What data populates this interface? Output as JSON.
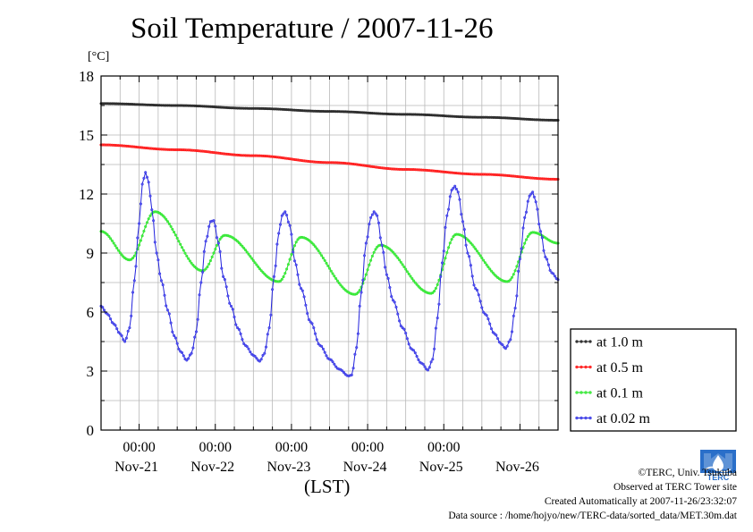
{
  "page": {
    "title": "Soil Temperature / 2007-11-26",
    "unit_label": "[°C]",
    "x_axis_label": "(LST)",
    "credits": [
      "©TERC, Univ. Tsukuba",
      "Observed at TERC Tower site",
      "Created Automatically at 2007-11-26/23:32:07",
      "Data source : /home/hojyo/new/TERC-data/sorted_data/MET.30m.dat"
    ],
    "logo": {
      "icon": "terc-logo-icon",
      "text": "TERC"
    }
  },
  "chart_data": {
    "type": "line",
    "title": "Soil Temperature / 2007-11-26",
    "ylabel": "[°C]",
    "xlabel": "(LST)",
    "x_unit": "hours since 2007-11-20 12:00 LST",
    "xlim": [
      0,
      144
    ],
    "ylim": [
      0,
      18
    ],
    "y_ticks": [
      0,
      3,
      6,
      9,
      12,
      15,
      18
    ],
    "x_tick_time_label": "00:00",
    "x_tick_hours": [
      12,
      36,
      60,
      84,
      108
    ],
    "x_date_labels": [
      "Nov-21",
      "Nov-22",
      "Nov-23",
      "Nov-24",
      "Nov-25",
      "Nov-26"
    ],
    "x_date_label_hours": [
      12,
      36,
      60,
      84,
      108,
      132
    ],
    "grid": true,
    "legend_position": "right",
    "series": [
      {
        "name": "at 1.0 m",
        "color": "#333333",
        "stroke": "#222222",
        "anchors": [
          [
            0,
            16.6
          ],
          [
            24,
            16.5
          ],
          [
            48,
            16.35
          ],
          [
            72,
            16.2
          ],
          [
            96,
            16.05
          ],
          [
            120,
            15.9
          ],
          [
            144,
            15.75
          ]
        ]
      },
      {
        "name": "at 0.5 m",
        "color": "#ff3333",
        "stroke": "#ff0000",
        "anchors": [
          [
            0,
            14.5
          ],
          [
            24,
            14.25
          ],
          [
            48,
            13.95
          ],
          [
            72,
            13.6
          ],
          [
            96,
            13.25
          ],
          [
            120,
            13.0
          ],
          [
            144,
            12.75
          ]
        ]
      },
      {
        "name": "at 0.1 m",
        "color": "#44ee44",
        "stroke": "#22dd22",
        "anchors": [
          [
            0,
            10.1
          ],
          [
            9,
            8.65
          ],
          [
            17,
            11.1
          ],
          [
            32,
            8.1
          ],
          [
            39,
            9.9
          ],
          [
            56,
            7.55
          ],
          [
            63,
            9.8
          ],
          [
            80,
            6.9
          ],
          [
            88,
            9.4
          ],
          [
            104,
            6.95
          ],
          [
            112,
            9.95
          ],
          [
            128,
            7.55
          ],
          [
            136,
            10.05
          ],
          [
            144,
            9.5
          ]
        ]
      },
      {
        "name": "at 0.02 m",
        "color": "#5555ee",
        "stroke": "#2222dd",
        "anchors": [
          [
            0,
            6.3
          ],
          [
            2,
            5.9
          ],
          [
            4,
            5.4
          ],
          [
            6,
            4.9
          ],
          [
            7.5,
            4.5
          ],
          [
            9,
            5.2
          ],
          [
            10.5,
            7.6
          ],
          [
            12,
            10.5
          ],
          [
            13,
            12.5
          ],
          [
            14,
            13.1
          ],
          [
            15,
            12.6
          ],
          [
            16,
            11.2
          ],
          [
            17.5,
            9.0
          ],
          [
            19,
            7.6
          ],
          [
            21,
            6.1
          ],
          [
            23,
            4.8
          ],
          [
            25,
            4.0
          ],
          [
            27,
            3.55
          ],
          [
            28.5,
            3.9
          ],
          [
            30,
            5.0
          ],
          [
            31.5,
            7.5
          ],
          [
            33,
            9.6
          ],
          [
            34.5,
            10.6
          ],
          [
            35.5,
            10.65
          ],
          [
            37,
            9.5
          ],
          [
            38.5,
            7.8
          ],
          [
            41,
            6.3
          ],
          [
            43,
            5.2
          ],
          [
            45.5,
            4.3
          ],
          [
            48,
            3.8
          ],
          [
            50,
            3.5
          ],
          [
            51.5,
            3.9
          ],
          [
            53,
            5.2
          ],
          [
            54.5,
            7.8
          ],
          [
            56,
            10.0
          ],
          [
            57,
            10.9
          ],
          [
            58,
            11.1
          ],
          [
            59.5,
            10.4
          ],
          [
            61,
            8.6
          ],
          [
            63,
            7.2
          ],
          [
            66,
            5.5
          ],
          [
            69,
            4.3
          ],
          [
            72,
            3.6
          ],
          [
            75,
            3.1
          ],
          [
            78,
            2.75
          ],
          [
            79,
            2.8
          ],
          [
            80.5,
            4.2
          ],
          [
            82,
            7.0
          ],
          [
            83.5,
            9.5
          ],
          [
            85,
            10.8
          ],
          [
            86,
            11.1
          ],
          [
            87,
            10.9
          ],
          [
            88.5,
            9.4
          ],
          [
            90,
            7.9
          ],
          [
            92,
            6.6
          ],
          [
            95,
            5.2
          ],
          [
            98,
            4.1
          ],
          [
            101,
            3.4
          ],
          [
            103,
            3.05
          ],
          [
            104.5,
            3.6
          ],
          [
            106,
            5.7
          ],
          [
            107.5,
            8.5
          ],
          [
            109,
            10.9
          ],
          [
            110.5,
            12.2
          ],
          [
            111.5,
            12.4
          ],
          [
            112.5,
            12.1
          ],
          [
            114,
            10.6
          ],
          [
            115.5,
            9.0
          ],
          [
            118,
            7.2
          ],
          [
            121,
            5.9
          ],
          [
            124,
            4.9
          ],
          [
            126,
            4.4
          ],
          [
            127.5,
            4.15
          ],
          [
            129,
            4.6
          ],
          [
            130.5,
            6.2
          ],
          [
            132,
            8.7
          ],
          [
            133.5,
            10.8
          ],
          [
            135,
            11.9
          ],
          [
            136,
            12.1
          ],
          [
            137,
            11.6
          ],
          [
            138.5,
            10.1
          ],
          [
            140,
            8.8
          ],
          [
            142,
            8.0
          ],
          [
            144,
            7.65
          ]
        ]
      }
    ]
  }
}
